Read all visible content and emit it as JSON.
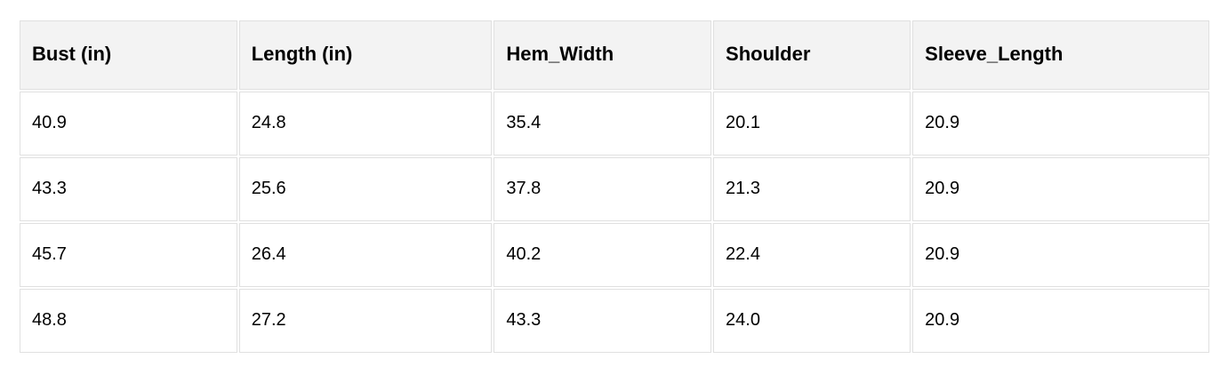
{
  "table": {
    "columns": [
      "Bust (in)",
      "Length (in)",
      "Hem_Width",
      "Shoulder",
      "Sleeve_Length"
    ],
    "rows": [
      [
        "40.9",
        "24.8",
        "35.4",
        "20.1",
        "20.9"
      ],
      [
        "43.3",
        "25.6",
        "37.8",
        "21.3",
        "20.9"
      ],
      [
        "45.7",
        "26.4",
        "40.2",
        "22.4",
        "20.9"
      ],
      [
        "48.8",
        "27.2",
        "43.3",
        "24.0",
        "20.9"
      ]
    ]
  },
  "colors": {
    "header_bg": "#f3f3f3",
    "border": "#e0e0e0",
    "cell_bg": "#ffffff",
    "text": "#000000",
    "page_bg": "#ffffff"
  },
  "chart_data": {
    "type": "table",
    "title": "",
    "columns": [
      "Bust (in)",
      "Length (in)",
      "Hem_Width",
      "Shoulder",
      "Sleeve_Length"
    ],
    "rows": [
      [
        40.9,
        24.8,
        35.4,
        20.1,
        20.9
      ],
      [
        43.3,
        25.6,
        37.8,
        21.3,
        20.9
      ],
      [
        45.7,
        26.4,
        40.2,
        22.4,
        20.9
      ],
      [
        48.8,
        27.2,
        43.3,
        24.0,
        20.9
      ]
    ]
  }
}
